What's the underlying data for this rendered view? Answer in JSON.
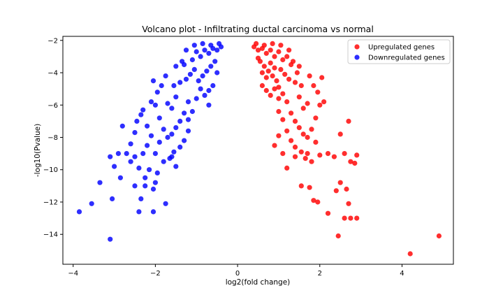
{
  "chart_data": {
    "type": "scatter",
    "title": "Volcano plot - Infiltrating ductal carcinoma vs normal",
    "xlabel": "log2(fold change)",
    "ylabel": "-log10(Pvalue)",
    "xlim": [
      -4.25,
      5.25
    ],
    "ylim": [
      -15.85,
      -1.75
    ],
    "xticks": [
      -4,
      -2,
      0,
      2,
      4
    ],
    "xtick_labels": [
      "−4",
      "−2",
      "0",
      "2",
      "4"
    ],
    "yticks": [
      -14,
      -12,
      -10,
      -8,
      -6,
      -4,
      -2
    ],
    "ytick_labels": [
      "−14",
      "−12",
      "−10",
      "−8",
      "−6",
      "−4",
      "−2"
    ],
    "grid": false,
    "legend_position": "top-right",
    "series": [
      {
        "name": "Upregulated genes",
        "color": "#ff0000",
        "points": [
          [
            0.4,
            -2.4
          ],
          [
            0.5,
            -2.6
          ],
          [
            0.6,
            -2.5
          ],
          [
            0.7,
            -2.8
          ],
          [
            0.8,
            -2.6
          ],
          [
            0.9,
            -3.0
          ],
          [
            1.0,
            -2.7
          ],
          [
            1.1,
            -3.2
          ],
          [
            0.55,
            -3.3
          ],
          [
            0.65,
            -3.6
          ],
          [
            0.75,
            -3.9
          ],
          [
            0.85,
            -4.2
          ],
          [
            0.95,
            -4.5
          ],
          [
            1.05,
            -3.8
          ],
          [
            1.15,
            -4.1
          ],
          [
            1.25,
            -4.4
          ],
          [
            0.6,
            -4.8
          ],
          [
            0.7,
            -5.1
          ],
          [
            0.8,
            -5.4
          ],
          [
            0.9,
            -5.0
          ],
          [
            1.0,
            -5.6
          ],
          [
            1.2,
            -5.8
          ],
          [
            1.3,
            -3.5
          ],
          [
            1.4,
            -4.6
          ],
          [
            0.5,
            -3.1
          ],
          [
            0.6,
            -4.0
          ],
          [
            0.7,
            -4.3
          ],
          [
            0.8,
            -3.4
          ],
          [
            0.9,
            -3.7
          ],
          [
            1.0,
            -4.9
          ],
          [
            1.1,
            -5.3
          ],
          [
            1.2,
            -3.0
          ],
          [
            0.45,
            -2.2
          ],
          [
            0.65,
            -2.3
          ],
          [
            0.85,
            -2.2
          ],
          [
            1.05,
            -2.3
          ],
          [
            1.25,
            -2.6
          ],
          [
            1.35,
            -3.3
          ],
          [
            1.5,
            -3.6
          ],
          [
            1.55,
            -4.8
          ],
          [
            1.5,
            -5.5
          ],
          [
            1.6,
            -6.2
          ],
          [
            1.7,
            -5.9
          ],
          [
            1.0,
            -6.4
          ],
          [
            1.1,
            -6.9
          ],
          [
            1.3,
            -6.5
          ],
          [
            1.4,
            -7.0
          ],
          [
            1.5,
            -7.4
          ],
          [
            1.6,
            -7.8
          ],
          [
            1.7,
            -8.0
          ],
          [
            1.8,
            -7.5
          ],
          [
            1.9,
            -6.8
          ],
          [
            2.0,
            -6.0
          ],
          [
            2.1,
            -5.8
          ],
          [
            1.85,
            -4.8
          ],
          [
            1.75,
            -4.2
          ],
          [
            1.95,
            -5.2
          ],
          [
            2.05,
            -4.3
          ],
          [
            1.2,
            -7.6
          ],
          [
            1.3,
            -8.2
          ],
          [
            1.4,
            -8.6
          ],
          [
            1.55,
            -8.9
          ],
          [
            1.65,
            -9.3
          ],
          [
            1.8,
            -9.5
          ],
          [
            1.9,
            -8.3
          ],
          [
            1.0,
            -7.9
          ],
          [
            0.9,
            -8.5
          ],
          [
            1.1,
            -9.0
          ],
          [
            1.2,
            -9.9
          ],
          [
            1.4,
            -9.2
          ],
          [
            1.7,
            -9.0
          ],
          [
            2.0,
            -9.1
          ],
          [
            2.2,
            -9.0
          ],
          [
            2.35,
            -9.2
          ],
          [
            2.5,
            -7.8
          ],
          [
            2.7,
            -7.0
          ],
          [
            2.6,
            -9.0
          ],
          [
            2.75,
            -9.5
          ],
          [
            2.85,
            -9.6
          ],
          [
            2.9,
            -9.1
          ],
          [
            1.55,
            -11.0
          ],
          [
            1.75,
            -11.1
          ],
          [
            1.85,
            -11.9
          ],
          [
            1.95,
            -12.0
          ],
          [
            2.2,
            -12.7
          ],
          [
            2.4,
            -11.3
          ],
          [
            2.5,
            -10.8
          ],
          [
            2.65,
            -11.2
          ],
          [
            2.7,
            -12.1
          ],
          [
            2.75,
            -13.0
          ],
          [
            2.9,
            -13.0
          ],
          [
            2.45,
            -14.1
          ],
          [
            2.6,
            -13.0
          ],
          [
            4.2,
            -15.2
          ],
          [
            4.9,
            -14.1
          ],
          [
            1.45,
            -4.0
          ]
        ]
      },
      {
        "name": "Downregulated genes",
        "color": "#0000ff",
        "points": [
          [
            -0.4,
            -2.4
          ],
          [
            -0.5,
            -2.6
          ],
          [
            -0.6,
            -2.5
          ],
          [
            -0.7,
            -2.8
          ],
          [
            -0.8,
            -2.6
          ],
          [
            -0.9,
            -3.0
          ],
          [
            -1.0,
            -2.7
          ],
          [
            -1.1,
            -3.2
          ],
          [
            -0.55,
            -3.3
          ],
          [
            -0.65,
            -3.6
          ],
          [
            -0.75,
            -3.9
          ],
          [
            -0.85,
            -4.2
          ],
          [
            -0.95,
            -4.5
          ],
          [
            -1.05,
            -3.8
          ],
          [
            -1.15,
            -4.1
          ],
          [
            -1.25,
            -4.4
          ],
          [
            -0.6,
            -4.8
          ],
          [
            -0.7,
            -5.1
          ],
          [
            -0.8,
            -5.4
          ],
          [
            -0.9,
            -5.0
          ],
          [
            -1.0,
            -5.6
          ],
          [
            -1.2,
            -5.8
          ],
          [
            -1.3,
            -3.5
          ],
          [
            -1.4,
            -4.6
          ],
          [
            -0.45,
            -2.2
          ],
          [
            -0.65,
            -2.3
          ],
          [
            -0.85,
            -2.2
          ],
          [
            -1.05,
            -2.3
          ],
          [
            -1.25,
            -2.6
          ],
          [
            -1.35,
            -3.3
          ],
          [
            -1.5,
            -3.6
          ],
          [
            -1.55,
            -4.8
          ],
          [
            -1.5,
            -5.5
          ],
          [
            -1.6,
            -6.2
          ],
          [
            -1.7,
            -5.9
          ],
          [
            -1.1,
            -6.4
          ],
          [
            -1.2,
            -6.9
          ],
          [
            -1.3,
            -6.5
          ],
          [
            -1.4,
            -7.0
          ],
          [
            -1.5,
            -7.4
          ],
          [
            -1.6,
            -7.8
          ],
          [
            -1.7,
            -8.0
          ],
          [
            -1.8,
            -7.5
          ],
          [
            -1.9,
            -6.8
          ],
          [
            -2.0,
            -6.0
          ],
          [
            -2.1,
            -5.8
          ],
          [
            -1.85,
            -4.8
          ],
          [
            -1.75,
            -4.2
          ],
          [
            -1.95,
            -5.2
          ],
          [
            -2.05,
            -4.5
          ],
          [
            -1.2,
            -7.6
          ],
          [
            -1.3,
            -8.2
          ],
          [
            -1.4,
            -8.6
          ],
          [
            -1.55,
            -8.9
          ],
          [
            -1.65,
            -9.3
          ],
          [
            -1.8,
            -9.5
          ],
          [
            -1.9,
            -8.3
          ],
          [
            -2.1,
            -7.9
          ],
          [
            -2.2,
            -8.5
          ],
          [
            -2.3,
            -9.0
          ],
          [
            -2.4,
            -9.9
          ],
          [
            -2.5,
            -9.2
          ],
          [
            -2.0,
            -9.0
          ],
          [
            -1.6,
            -9.2
          ],
          [
            -2.2,
            -7.3
          ],
          [
            -2.35,
            -6.6
          ],
          [
            -2.5,
            -7.7
          ],
          [
            -2.6,
            -8.4
          ],
          [
            -2.7,
            -9.0
          ],
          [
            -2.3,
            -6.3
          ],
          [
            -2.45,
            -7.0
          ],
          [
            -2.8,
            -7.3
          ],
          [
            -2.15,
            -10.0
          ],
          [
            -2.25,
            -10.5
          ],
          [
            -2.6,
            -9.5
          ],
          [
            -2.9,
            -9.0
          ],
          [
            -3.1,
            -9.2
          ],
          [
            -2.05,
            -11.2
          ],
          [
            -1.95,
            -10.2
          ],
          [
            -2.0,
            -10.8
          ],
          [
            -2.25,
            -11.0
          ],
          [
            -2.35,
            -11.8
          ],
          [
            -2.05,
            -12.6
          ],
          [
            -1.75,
            -12.1
          ],
          [
            -2.85,
            -10.5
          ],
          [
            -3.0,
            -9.8
          ],
          [
            -3.35,
            -10.8
          ],
          [
            -3.05,
            -11.8
          ],
          [
            -3.55,
            -12.1
          ],
          [
            -3.85,
            -12.6
          ],
          [
            -3.1,
            -14.3
          ],
          [
            -2.5,
            -11.0
          ],
          [
            -2.4,
            -12.6
          ],
          [
            -1.5,
            -9.8
          ],
          [
            -0.5,
            -4.0
          ],
          [
            -0.7,
            -6.0
          ]
        ]
      }
    ]
  }
}
